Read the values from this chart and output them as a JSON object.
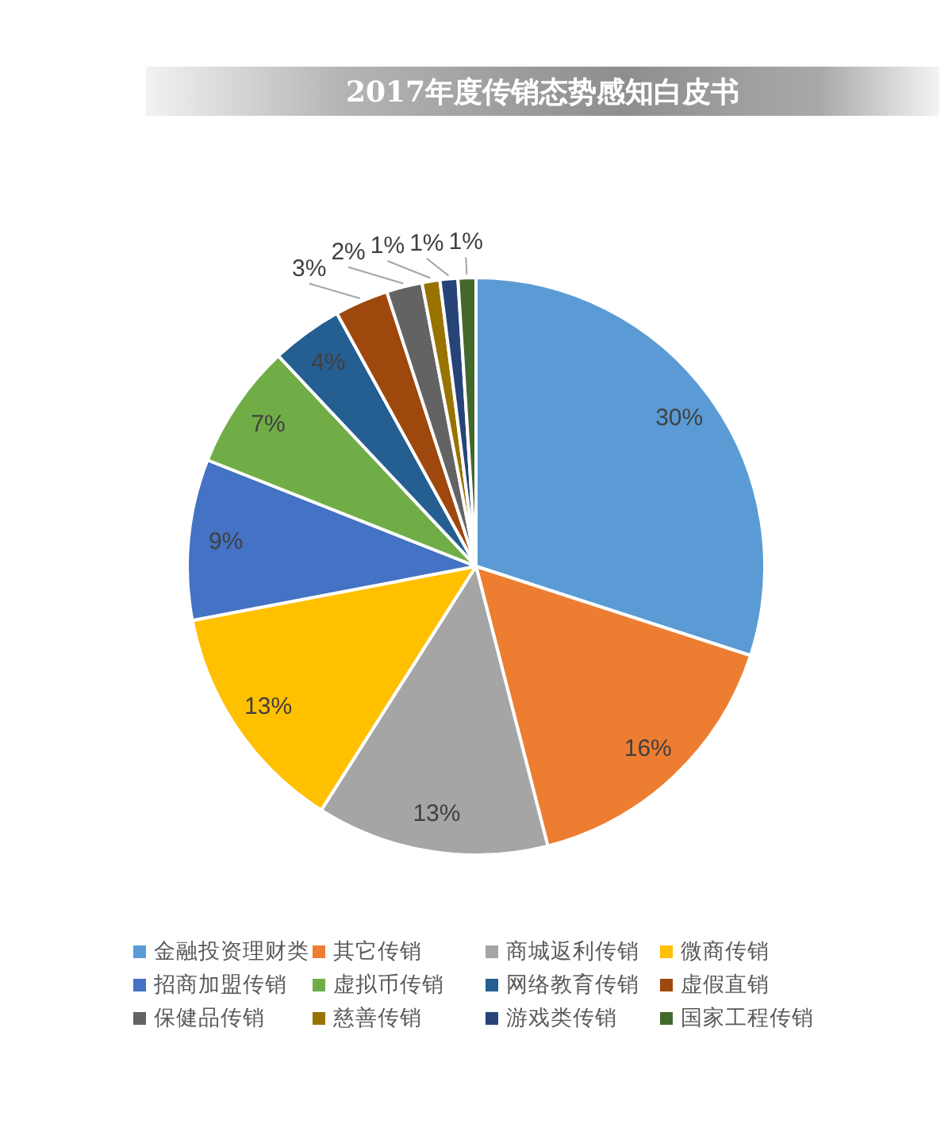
{
  "chart_data": {
    "type": "pie",
    "title": "2017年度传销态势感知白皮书",
    "categories": [
      "金融投资理财类",
      "其它传销",
      "商城返利传销",
      "微商传销",
      "招商加盟传销",
      "虚拟币传销",
      "网络教育传销",
      "虚假直销",
      "保健品传销",
      "慈善传销",
      "游戏类传销",
      "国家工程传销"
    ],
    "values": [
      30,
      16,
      13,
      13,
      9,
      7,
      4,
      3,
      2,
      1,
      1,
      1
    ],
    "value_labels": [
      "30%",
      "16%",
      "13%",
      "13%",
      "9%",
      "7%",
      "4%",
      "3%",
      "2%",
      "1%",
      "1%",
      "1%"
    ],
    "colors": [
      "#5b9bd5",
      "#ed7d31",
      "#a5a5a5",
      "#ffc000",
      "#4472c4",
      "#70ad47",
      "#255e91",
      "#9e480e",
      "#636363",
      "#997300",
      "#264478",
      "#43682b"
    ],
    "legend": "bottom"
  }
}
